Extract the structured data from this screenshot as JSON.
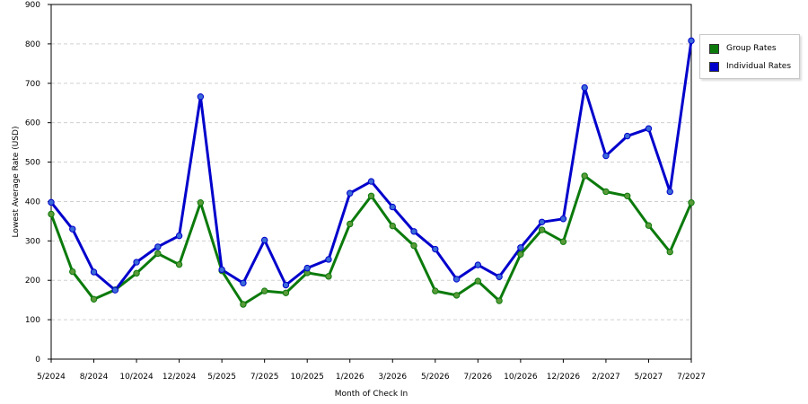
{
  "chart_data": {
    "type": "line",
    "xlabel": "Month of Check In",
    "ylabel": "Lowest Average Rate (USD)",
    "ylim": [
      0,
      900
    ],
    "yticks": [
      0,
      100,
      200,
      300,
      400,
      500,
      600,
      700,
      800,
      900
    ],
    "grid": "horizontal dashed",
    "legend_position": "right",
    "x_tick_labels": [
      {
        "index": 0,
        "label": "5/2024"
      },
      {
        "index": 2,
        "label": "8/2024"
      },
      {
        "index": 4,
        "label": "10/2024"
      },
      {
        "index": 6,
        "label": "12/2024"
      },
      {
        "index": 8,
        "label": "5/2025"
      },
      {
        "index": 10,
        "label": "7/2025"
      },
      {
        "index": 12,
        "label": "10/2025"
      },
      {
        "index": 14,
        "label": "1/2026"
      },
      {
        "index": 16,
        "label": "3/2026"
      },
      {
        "index": 18,
        "label": "5/2026"
      },
      {
        "index": 20,
        "label": "7/2026"
      },
      {
        "index": 22,
        "label": "10/2026"
      },
      {
        "index": 24,
        "label": "12/2026"
      },
      {
        "index": 26,
        "label": "2/2027"
      },
      {
        "index": 28,
        "label": "5/2027"
      },
      {
        "index": 30,
        "label": "7/2027"
      }
    ],
    "series": [
      {
        "name": "Group Rates",
        "color": "#0b7a0b",
        "marker_color": "#5a9a3a",
        "values": [
          368,
          222,
          152,
          176,
          218,
          268,
          240,
          397,
          224,
          139,
          173,
          168,
          219,
          210,
          343,
          414,
          338,
          288,
          173,
          162,
          198,
          148,
          266,
          328,
          298,
          465,
          425,
          414,
          339,
          272,
          397
        ]
      },
      {
        "name": "Individual Rates",
        "color": "#0000cc",
        "marker_color": "#3a6ad8",
        "values": [
          398,
          330,
          221,
          175,
          246,
          285,
          313,
          666,
          227,
          193,
          302,
          188,
          231,
          253,
          421,
          451,
          386,
          324,
          279,
          203,
          239,
          209,
          283,
          348,
          356,
          689,
          516,
          566,
          585,
          425,
          808
        ]
      }
    ]
  }
}
